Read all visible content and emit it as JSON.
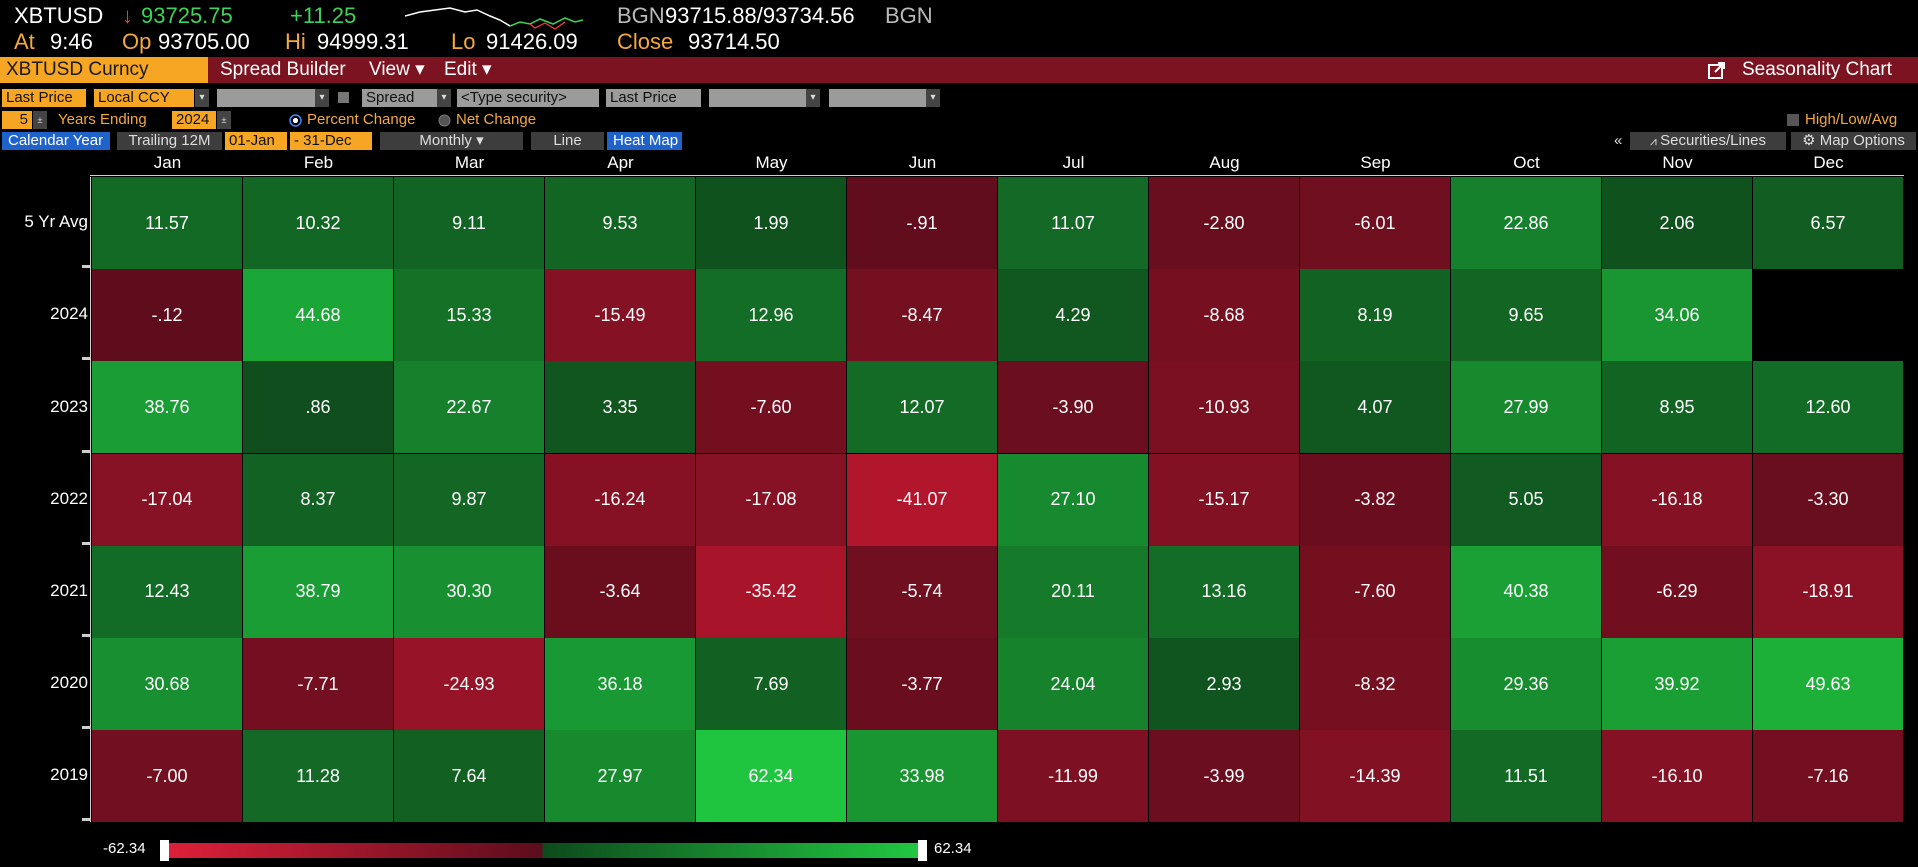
{
  "ticker": {
    "symbol": "XBTUSD",
    "arrow": "↓",
    "last": "93725.75",
    "change": "+11.25",
    "bgn_label": "BGN",
    "bid_ask": "93715.88/93734.56",
    "bgn_label2": "BGN",
    "at_label": "At",
    "time": "9:46",
    "op_label": "Op",
    "open": "93705.00",
    "hi_label": "Hi",
    "high": "94999.31",
    "lo_label": "Lo",
    "low": "91426.09",
    "close_label": "Close",
    "close": "93714.50"
  },
  "menubar": {
    "security": "XBTUSD Curncy",
    "items": [
      "Spread Builder",
      "View ▾",
      "Edit ▾"
    ],
    "seasonality": "Seasonality Chart"
  },
  "controls": {
    "row1": {
      "field1": "Last Price",
      "field2": "Local CCY",
      "spread": "Spread",
      "type_security": "<Type security>",
      "last_price2": "Last Price"
    },
    "row2": {
      "years": "5",
      "years_ending_label": "Years Ending",
      "ending_year": "2024",
      "percent_change": "Percent Change",
      "net_change": "Net Change",
      "high_low_avg": "High/Low/Avg"
    },
    "row3": {
      "calendar_year": "Calendar Year",
      "trailing": "Trailing 12M",
      "from": "01-Jan",
      "to": "- 31-Dec",
      "monthly": "Monthly ▾",
      "line": "Line",
      "heat_map": "Heat Map",
      "collapse": "«",
      "securities_lines": "Securities/Lines",
      "map_options": "Map Options"
    }
  },
  "colors": {
    "red_max": "#d21a34",
    "red_min": "#5e0d1c",
    "green_min": "#0f4a1c",
    "green_max": "#1fc43f"
  },
  "chart_data": {
    "type": "heatmap",
    "columns": [
      "Jan",
      "Feb",
      "Mar",
      "Apr",
      "May",
      "Jun",
      "Jul",
      "Aug",
      "Sep",
      "Oct",
      "Nov",
      "Dec"
    ],
    "rows": [
      {
        "label": "5 Yr Avg",
        "values": [
          "11.57",
          "10.32",
          "9.11",
          "9.53",
          "1.99",
          "-.91",
          "11.07",
          "-2.80",
          "-6.01",
          "22.86",
          "2.06",
          "6.57"
        ]
      },
      {
        "label": "2024",
        "values": [
          "-.12",
          "44.68",
          "15.33",
          "-15.49",
          "12.96",
          "-8.47",
          "4.29",
          "-8.68",
          "8.19",
          "9.65",
          "34.06",
          ""
        ]
      },
      {
        "label": "2023",
        "values": [
          "38.76",
          ".86",
          "22.67",
          "3.35",
          "-7.60",
          "12.07",
          "-3.90",
          "-10.93",
          "4.07",
          "27.99",
          "8.95",
          "12.60"
        ]
      },
      {
        "label": "2022",
        "values": [
          "-17.04",
          "8.37",
          "9.87",
          "-16.24",
          "-17.08",
          "-41.07",
          "27.10",
          "-15.17",
          "-3.82",
          "5.05",
          "-16.18",
          "-3.30"
        ]
      },
      {
        "label": "2021",
        "values": [
          "12.43",
          "38.79",
          "30.30",
          "-3.64",
          "-35.42",
          "-5.74",
          "20.11",
          "13.16",
          "-7.60",
          "40.38",
          "-6.29",
          "-18.91"
        ]
      },
      {
        "label": "2020",
        "values": [
          "30.68",
          "-7.71",
          "-24.93",
          "36.18",
          "7.69",
          "-3.77",
          "24.04",
          "2.93",
          "-8.32",
          "29.36",
          "39.92",
          "49.63"
        ]
      },
      {
        "label": "2019",
        "values": [
          "-7.00",
          "11.28",
          "7.64",
          "27.97",
          "62.34",
          "33.98",
          "-11.99",
          "-3.99",
          "-14.39",
          "11.51",
          "-16.10",
          "-7.16"
        ]
      }
    ],
    "scale_min": "-62.34",
    "scale_max": "62.34"
  }
}
